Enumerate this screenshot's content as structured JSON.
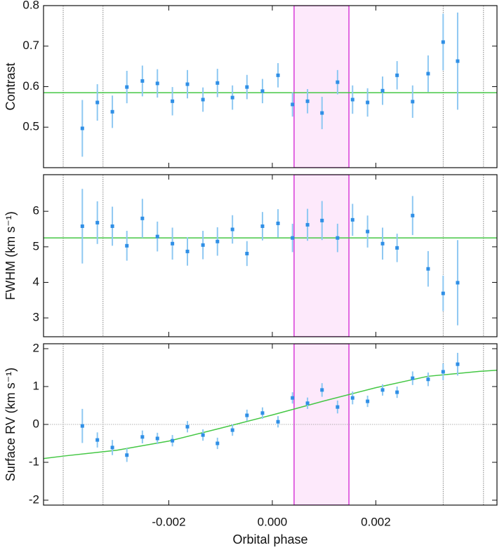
{
  "chart_data": [
    {
      "type": "errorbar",
      "ylabel": "Contrast",
      "x": [
        -0.00367,
        -0.00338,
        -0.00309,
        -0.00281,
        -0.00251,
        -0.00222,
        -0.00193,
        -0.00164,
        -0.00134,
        -0.00106,
        -0.00077,
        -0.00049,
        -0.00019,
        0.00011,
        0.00039,
        0.00068,
        0.00096,
        0.00126,
        0.00155,
        0.00184,
        0.00213,
        0.00241,
        0.00271,
        0.00301,
        0.0033,
        0.00358
      ],
      "values": [
        0.497,
        0.561,
        0.538,
        0.599,
        0.614,
        0.608,
        0.564,
        0.606,
        0.568,
        0.609,
        0.573,
        0.599,
        0.589,
        0.628,
        0.556,
        0.564,
        0.535,
        0.611,
        0.568,
        0.561,
        0.59,
        0.628,
        0.563,
        0.632,
        0.71,
        0.663
      ],
      "errors": [
        0.07,
        0.045,
        0.04,
        0.04,
        0.038,
        0.035,
        0.035,
        0.035,
        0.03,
        0.035,
        0.03,
        0.03,
        0.03,
        0.03,
        0.03,
        0.03,
        0.04,
        0.03,
        0.035,
        0.035,
        0.035,
        0.035,
        0.04,
        0.045,
        0.07,
        0.12
      ],
      "color": "#2f8fe6",
      "error_color": "#8ec8f2",
      "xlim": [
        -0.00442,
        0.00434
      ],
      "ylim": [
        0.4,
        0.8
      ],
      "yticks": [
        0.5,
        0.6,
        0.7,
        0.8
      ],
      "hline": {
        "value": 0.585,
        "color": "#44c744",
        "style": "solid"
      },
      "vlines": [
        -0.00404,
        -0.00327,
        0.0033,
        0.00408
      ],
      "shade": [
        0.00042,
        0.00148
      ],
      "shade_color": "#fde9fb",
      "shade_edge": "#d83ad8"
    },
    {
      "type": "errorbar",
      "ylabel": "FWHM (km s⁻¹)",
      "x": [
        -0.00367,
        -0.00338,
        -0.00309,
        -0.00281,
        -0.00251,
        -0.00222,
        -0.00193,
        -0.00164,
        -0.00134,
        -0.00106,
        -0.00077,
        -0.00049,
        -0.00019,
        0.00011,
        0.00039,
        0.00068,
        0.00096,
        0.00126,
        0.00155,
        0.00184,
        0.00213,
        0.00241,
        0.00271,
        0.00301,
        0.0033,
        0.00358
      ],
      "values": [
        5.58,
        5.68,
        5.58,
        5.03,
        5.8,
        5.29,
        5.09,
        4.87,
        5.05,
        5.15,
        5.49,
        4.81,
        5.58,
        5.66,
        5.25,
        5.62,
        5.74,
        5.25,
        5.76,
        5.43,
        5.09,
        4.97,
        5.88,
        4.38,
        3.69,
        3.99
      ],
      "errors": [
        1.05,
        0.6,
        0.55,
        0.42,
        0.55,
        0.42,
        0.45,
        0.4,
        0.4,
        0.4,
        0.4,
        0.35,
        0.4,
        0.4,
        0.4,
        0.45,
        0.55,
        0.4,
        0.45,
        0.45,
        0.45,
        0.4,
        0.55,
        0.5,
        0.5,
        1.2
      ],
      "color": "#2f8fe6",
      "error_color": "#8ec8f2",
      "xlim": [
        -0.00442,
        0.00434
      ],
      "ylim": [
        2.47,
        7.03
      ],
      "yticks": [
        3,
        4,
        5,
        6
      ],
      "hline": {
        "value": 5.25,
        "color": "#44c744",
        "style": "solid"
      },
      "vlines": [
        -0.00404,
        -0.00327,
        0.0033,
        0.00408
      ],
      "shade": [
        0.00042,
        0.00148
      ],
      "shade_color": "#fde9fb",
      "shade_edge": "#d83ad8"
    },
    {
      "type": "errorbar",
      "ylabel": "Surface RV (km s⁻¹)",
      "xlabel": "Orbital phase",
      "x": [
        -0.00367,
        -0.00338,
        -0.00309,
        -0.00281,
        -0.00251,
        -0.00222,
        -0.00193,
        -0.00164,
        -0.00134,
        -0.00106,
        -0.00077,
        -0.00049,
        -0.00019,
        0.00011,
        0.00039,
        0.00068,
        0.00096,
        0.00126,
        0.00155,
        0.00184,
        0.00213,
        0.00241,
        0.00271,
        0.00301,
        0.0033,
        0.00358
      ],
      "values": [
        -0.04,
        -0.41,
        -0.61,
        -0.81,
        -0.33,
        -0.37,
        -0.43,
        -0.06,
        -0.28,
        -0.5,
        -0.15,
        0.24,
        0.3,
        0.07,
        0.7,
        0.56,
        0.91,
        0.46,
        0.7,
        0.61,
        0.91,
        0.85,
        1.22,
        1.19,
        1.39,
        1.59
      ],
      "errors": [
        0.45,
        0.2,
        0.2,
        0.18,
        0.17,
        0.15,
        0.15,
        0.15,
        0.15,
        0.15,
        0.15,
        0.15,
        0.15,
        0.15,
        0.15,
        0.15,
        0.18,
        0.17,
        0.17,
        0.15,
        0.15,
        0.15,
        0.18,
        0.18,
        0.22,
        0.3
      ],
      "color": "#2f8fe6",
      "error_color": "#8ec8f2",
      "xlim": [
        -0.00442,
        0.00434
      ],
      "ylim": [
        -2.13,
        2.13
      ],
      "yticks": [
        -2,
        -1,
        0,
        1,
        2
      ],
      "xticks": [
        -0.002,
        {
          "value": 0,
          "label": "0.000"
        },
        0.002
      ],
      "hline": {
        "value": 0,
        "color": "#999999",
        "style": "dotted"
      },
      "model": {
        "x": [
          -0.00442,
          -0.004,
          -0.003,
          -0.002,
          -0.001,
          0,
          0.001,
          0.002,
          0.003,
          0.004,
          0.00434
        ],
        "values": [
          -0.9,
          -0.83,
          -0.68,
          -0.44,
          -0.1,
          0.25,
          0.62,
          0.97,
          1.27,
          1.4,
          1.43
        ],
        "color": "#44c744"
      },
      "vlines": [
        -0.00404,
        -0.00327,
        0.0033,
        0.00408
      ],
      "shade": [
        0.00042,
        0.00148
      ],
      "shade_color": "#fde9fb",
      "shade_edge": "#d83ad8"
    }
  ]
}
